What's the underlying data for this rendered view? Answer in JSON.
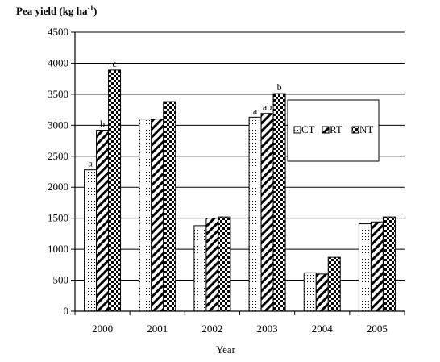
{
  "chart_data": {
    "type": "bar",
    "ylabel_main": "Pea yield (kg ha",
    "ylabel_sup": "-1",
    "ylabel_close": ")",
    "xlabel": "Year",
    "categories": [
      "2000",
      "2001",
      "2002",
      "2003",
      "2004",
      "2005"
    ],
    "ylim": [
      0,
      4500
    ],
    "yticks": [
      0,
      500,
      1000,
      1500,
      2000,
      2500,
      3000,
      3500,
      4000,
      4500
    ],
    "ytick_labels": [
      "0",
      "500",
      "1000",
      "1500",
      "2000",
      "2500",
      "3000",
      "3500",
      "4000",
      "4500"
    ],
    "grid": true,
    "legend_position": "right",
    "series": [
      {
        "name": "CT",
        "pattern": "dots",
        "values": [
          2280,
          3100,
          1380,
          3130,
          620,
          1410
        ],
        "letters": [
          "a",
          "",
          "",
          "a",
          "",
          ""
        ]
      },
      {
        "name": "RT",
        "pattern": "diagonal-stripes",
        "values": [
          2920,
          3100,
          1500,
          3190,
          600,
          1440
        ],
        "letters": [
          "b",
          "",
          "",
          "ab",
          "",
          ""
        ]
      },
      {
        "name": "NT",
        "pattern": "checkerboard",
        "values": [
          3890,
          3380,
          1520,
          3510,
          870,
          1520
        ],
        "letters": [
          "c",
          "",
          "",
          "b",
          "",
          ""
        ]
      }
    ]
  }
}
